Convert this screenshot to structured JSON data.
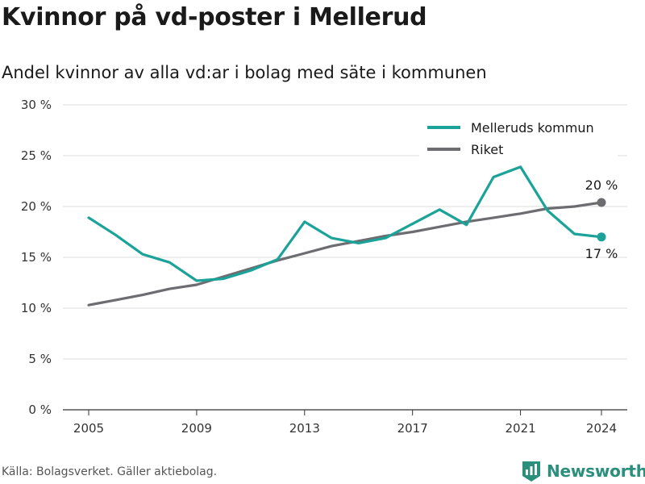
{
  "title": "Kvinnor på vd-poster i Mellerud",
  "subtitle": "Andel kvinnor av alla vd:ar i bolag med säte i kommunen",
  "source": "Källa: Bolagsverket. Gäller aktiebolag.",
  "brand": {
    "name": "Newsworthy",
    "icon": "newsworthy-logo-icon",
    "color": "#2a8f7b"
  },
  "chart_data": {
    "type": "line",
    "x": [
      2005,
      2006,
      2007,
      2008,
      2009,
      2010,
      2011,
      2012,
      2013,
      2014,
      2015,
      2016,
      2017,
      2018,
      2019,
      2020,
      2021,
      2022,
      2023,
      2024
    ],
    "series": [
      {
        "name": "Melleruds kommun",
        "color": "#1ba39a",
        "values": [
          18.9,
          17.2,
          15.3,
          14.5,
          12.7,
          12.9,
          13.7,
          14.8,
          18.5,
          16.9,
          16.4,
          16.9,
          18.3,
          19.7,
          18.2,
          22.9,
          23.9,
          19.6,
          17.3,
          17.0
        ]
      },
      {
        "name": "Riket",
        "color": "#6d6c71",
        "values": [
          10.3,
          10.8,
          11.3,
          11.9,
          12.3,
          13.1,
          13.9,
          14.7,
          15.4,
          16.1,
          16.6,
          17.1,
          17.5,
          18.0,
          18.5,
          18.9,
          19.3,
          19.8,
          20.0,
          20.4
        ]
      }
    ],
    "end_labels": [
      "17 %",
      "20 %"
    ],
    "x_ticks": [
      "2005",
      "2009",
      "2013",
      "2017",
      "2021",
      "2024"
    ],
    "x_tick_values": [
      2005,
      2009,
      2013,
      2017,
      2021,
      2024
    ],
    "y_ticks": [
      "0 %",
      "5 %",
      "10 %",
      "15 %",
      "20 %",
      "25 %",
      "30 %"
    ],
    "y_tick_values": [
      0,
      5,
      10,
      15,
      20,
      25,
      30
    ],
    "ylim": [
      0,
      30
    ],
    "xlim": [
      2005,
      2024
    ],
    "grid": true,
    "legend_position": "top-right"
  }
}
